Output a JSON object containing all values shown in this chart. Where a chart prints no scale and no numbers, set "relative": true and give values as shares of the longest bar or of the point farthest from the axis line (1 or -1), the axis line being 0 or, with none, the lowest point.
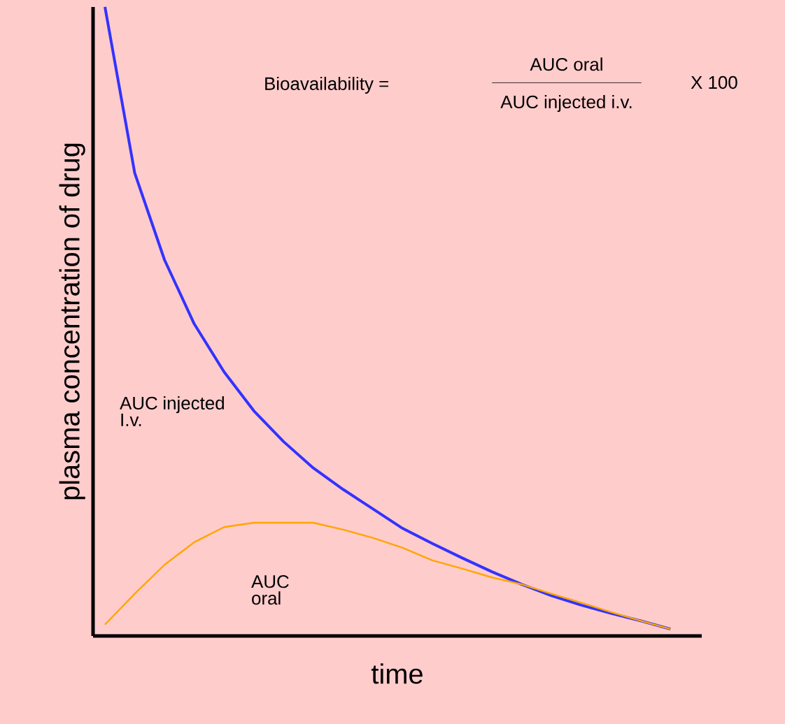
{
  "chart_data": {
    "type": "line",
    "relative": true,
    "xlabel": "time",
    "ylabel": "plasma concentration of drug",
    "annotations": [
      "Bioavailability =",
      "AUC oral",
      "AUC injected i.v.",
      "X 100",
      "AUC injected I.v.",
      "AUC oral"
    ],
    "categories": [
      null,
      null,
      null,
      null,
      null,
      null,
      null,
      null,
      null,
      null,
      null,
      null,
      null,
      null,
      null,
      null,
      null,
      null,
      null,
      null
    ],
    "series": [
      {
        "color": "#3333ff",
        "values": [
          1,
          0.736,
          0.598,
          0.496,
          0.42,
          0.358,
          0.309,
          0.267,
          0.233,
          0.202,
          0.171,
          0.147,
          0.124,
          0.102,
          0.082,
          0.064,
          0.049,
          0.036,
          0.024,
          0.011
        ]
      },
      {
        "color": "#ffa500",
        "values": [
          0.018,
          0.067,
          0.113,
          0.149,
          0.173,
          0.18,
          0.18,
          0.18,
          0.169,
          0.156,
          0.14,
          0.12,
          0.107,
          0.093,
          0.082,
          0.067,
          0.053,
          0.038,
          0.024,
          0.011
        ]
      }
    ]
  }
}
